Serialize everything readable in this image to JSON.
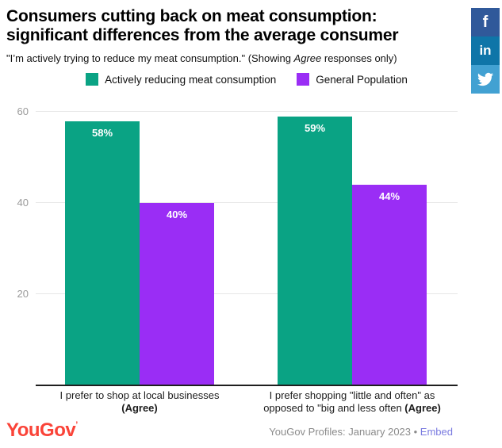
{
  "header": {
    "title_line1": "Consumers cutting back on meat consumption:",
    "title_line2": "significant differences from the average consumer",
    "subtitle_prefix": "\"I’m actively trying to reduce my meat consumption.\" (Showing ",
    "subtitle_italic": "Agree",
    "subtitle_suffix": " responses only)"
  },
  "legend": {
    "items": [
      {
        "label": "Actively reducing meat consumption",
        "color": "#0aa384"
      },
      {
        "label": "General Population",
        "color": "#9a2df5"
      }
    ]
  },
  "chart_data": {
    "type": "bar",
    "title": "Consumers cutting back on meat consumption: significant differences from the average consumer",
    "subtitle": "\"I’m actively trying to reduce my meat consumption.\" (Showing Agree responses only)",
    "categories": [
      "I prefer to shop at local businesses (Agree)",
      "I prefer shopping \"little and often\" as opposed to \"big and less often (Agree)"
    ],
    "series": [
      {
        "name": "Actively reducing meat consumption",
        "color": "#0aa384",
        "values": [
          58,
          59
        ],
        "labels": [
          "58%",
          "59%"
        ]
      },
      {
        "name": "General Population",
        "color": "#9a2df5",
        "values": [
          40,
          44
        ],
        "labels": [
          "40%",
          "44%"
        ]
      }
    ],
    "yticks": [
      20,
      40,
      60
    ],
    "ylim": [
      0,
      63
    ],
    "grid": true,
    "legend_position": "top",
    "value_label_format": "percent"
  },
  "xaxis_labels": [
    {
      "line1": "I prefer to shop at local businesses",
      "line2": "",
      "agree": "(Agree)"
    },
    {
      "line1": "I prefer shopping \"little and often\" as",
      "line2": "opposed to \"big and less often ",
      "agree": "(Agree)"
    }
  ],
  "footer": {
    "logo": "YouGov",
    "logo_mark": "’",
    "logo_color": "#fa4338",
    "source": "YouGov Profiles: January 2023",
    "separator": " • ",
    "embed_label": "Embed",
    "embed_color": "#7a7be0"
  },
  "social": {
    "facebook_label": "f",
    "linkedin_label": "in",
    "colors": {
      "facebook": "#30599a",
      "linkedin": "#0f75a8",
      "twitter": "#42a1d2"
    }
  }
}
